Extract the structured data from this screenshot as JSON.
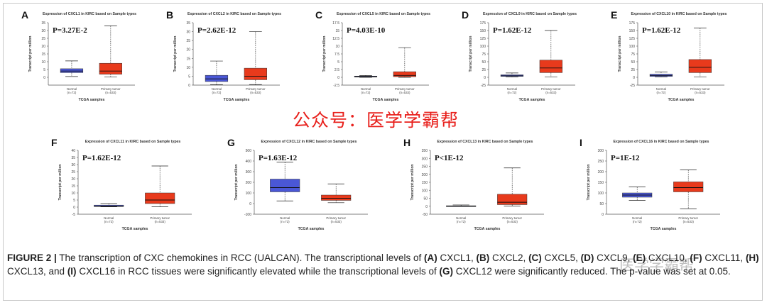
{
  "chart_data": [
    {
      "type": "box",
      "panel": "A",
      "title": "Expression of CXCL1 in KIRC based on Sample types",
      "pvalue": "P=3.27E-2",
      "ylabel": "Transcript per million",
      "xlabel": "TCGA samples",
      "ylim": [
        -5,
        35
      ],
      "yticks": [
        0,
        5,
        10,
        15,
        20,
        25,
        30,
        35
      ],
      "categories": [
        "Normal\n(n=72)",
        "Primary tumor\n(n=533)"
      ],
      "boxes": [
        {
          "min": 0.5,
          "q1": 3,
          "median": 4,
          "q3": 5.5,
          "max": 10.5,
          "color": "#4a57d6"
        },
        {
          "min": 0.2,
          "q1": 2,
          "median": 4,
          "q3": 9,
          "max": 33,
          "color": "#e83a1c"
        }
      ]
    },
    {
      "type": "box",
      "panel": "B",
      "title": "Expression of CXCL2 in KIRC based on Sample types",
      "pvalue": "P=2.62E-12",
      "ylabel": "Transcript per million",
      "xlabel": "TCGA samples",
      "ylim": [
        0,
        35
      ],
      "yticks": [
        0,
        5,
        10,
        15,
        20,
        25,
        30,
        35
      ],
      "categories": [
        "Normal\n(n=72)",
        "Primary tumor\n(n=533)"
      ],
      "boxes": [
        {
          "min": 0.3,
          "q1": 2,
          "median": 3.5,
          "q3": 5.5,
          "max": 13.5,
          "color": "#4a57d6"
        },
        {
          "min": 0.3,
          "q1": 3,
          "median": 5,
          "q3": 9.5,
          "max": 30,
          "color": "#e83a1c"
        }
      ]
    },
    {
      "type": "box",
      "panel": "C",
      "title": "Expression of CXCL5 in KIRC based on Sample types",
      "pvalue": "P=4.03E-10",
      "ylabel": "Transcript per million",
      "xlabel": "TCGA samples",
      "ylim": [
        -2.5,
        17.5
      ],
      "yticks": [
        -2.5,
        0,
        2.5,
        5,
        7.5,
        10,
        12.5,
        15,
        17.5
      ],
      "categories": [
        "Normal\n(n=72)",
        "Primary tumor\n(n=533)"
      ],
      "boxes": [
        {
          "min": 0,
          "q1": 0.1,
          "median": 0.2,
          "q3": 0.4,
          "max": 0.6,
          "color": "#4a57d6"
        },
        {
          "min": 0,
          "q1": 0.2,
          "median": 0.6,
          "q3": 1.8,
          "max": 9.5,
          "color": "#e83a1c"
        }
      ]
    },
    {
      "type": "box",
      "panel": "D",
      "title": "Expression of CXCL9 in KIRC based on Sample types",
      "pvalue": "P=1.62E-12",
      "ylabel": "Transcript per million",
      "xlabel": "TCGA samples",
      "ylim": [
        -25,
        175
      ],
      "yticks": [
        -25,
        0,
        25,
        50,
        75,
        100,
        125,
        150,
        175
      ],
      "categories": [
        "Normal\n(n=72)",
        "Primary tumor\n(n=533)"
      ],
      "boxes": [
        {
          "min": 1,
          "q1": 3,
          "median": 5,
          "q3": 8,
          "max": 14,
          "color": "#4a57d6"
        },
        {
          "min": 1,
          "q1": 15,
          "median": 30,
          "q3": 55,
          "max": 150,
          "color": "#e83a1c"
        }
      ]
    },
    {
      "type": "box",
      "panel": "E",
      "title": "Expression of CXCL10 in KIRC based on Sample types",
      "pvalue": "P=1.62E-12",
      "ylabel": "Transcript per million",
      "xlabel": "TCGA samples",
      "ylim": [
        -25,
        175
      ],
      "yticks": [
        -25,
        0,
        25,
        50,
        75,
        100,
        125,
        150,
        175
      ],
      "categories": [
        "Normal\n(n=72)",
        "Primary tumor\n(n=533)"
      ],
      "boxes": [
        {
          "min": 1,
          "q1": 3,
          "median": 6,
          "q3": 10,
          "max": 17,
          "color": "#4a57d6"
        },
        {
          "min": 1,
          "q1": 15,
          "median": 32,
          "q3": 57,
          "max": 158,
          "color": "#e83a1c"
        }
      ]
    },
    {
      "type": "box",
      "panel": "F",
      "title": "Expression of CXCL11 in KIRC based on Sample types",
      "pvalue": "P=1.62E-12",
      "ylabel": "Transcript per million",
      "xlabel": "TCGA samples",
      "ylim": [
        -5,
        40
      ],
      "yticks": [
        -5,
        0,
        5,
        10,
        15,
        20,
        25,
        30,
        35,
        40
      ],
      "categories": [
        "Normal\n(n=72)",
        "Primary tumor\n(n=533)"
      ],
      "boxes": [
        {
          "min": 0.2,
          "q1": 0.4,
          "median": 0.8,
          "q3": 1.4,
          "max": 2.5,
          "color": "#4a57d6"
        },
        {
          "min": 0.3,
          "q1": 2.5,
          "median": 5,
          "q3": 10,
          "max": 29,
          "color": "#e83a1c"
        }
      ]
    },
    {
      "type": "box",
      "panel": "G",
      "title": "Expression of CXCL12 in KIRC based on Sample types",
      "pvalue": "P=1.63E-12",
      "ylabel": "Transcript per million",
      "xlabel": "TCGA samples",
      "ylim": [
        -100,
        500
      ],
      "yticks": [
        -100,
        0,
        100,
        200,
        300,
        400,
        500
      ],
      "categories": [
        "Normal\n(n=72)",
        "Primary tumor\n(n=533)"
      ],
      "boxes": [
        {
          "min": 25,
          "q1": 110,
          "median": 150,
          "q3": 230,
          "max": 390,
          "color": "#4a57d6"
        },
        {
          "min": 8,
          "q1": 30,
          "median": 50,
          "q3": 80,
          "max": 185,
          "color": "#e83a1c"
        }
      ]
    },
    {
      "type": "box",
      "panel": "H",
      "title": "Expression of CXCL13 in KIRC based on Sample types",
      "pvalue": "P<1E-12",
      "ylabel": "Transcript per million",
      "xlabel": "TCGA samples",
      "ylim": [
        -50,
        350
      ],
      "yticks": [
        -50,
        0,
        50,
        100,
        150,
        200,
        250,
        300,
        350
      ],
      "categories": [
        "Normal\n(n=72)",
        "Primary tumor\n(n=533)"
      ],
      "boxes": [
        {
          "min": 0,
          "q1": 0.5,
          "median": 1,
          "q3": 3,
          "max": 8,
          "color": "#4a57d6"
        },
        {
          "min": 1,
          "q1": 10,
          "median": 25,
          "q3": 75,
          "max": 240,
          "color": "#e83a1c"
        }
      ]
    },
    {
      "type": "box",
      "panel": "I",
      "title": "Expression of CXCL16 in KIRC based on Sample types",
      "pvalue": "P=1E-12",
      "ylabel": "Transcript per million",
      "xlabel": "TCGA samples",
      "ylim": [
        0,
        300
      ],
      "yticks": [
        0,
        50,
        100,
        150,
        200,
        250,
        300
      ],
      "categories": [
        "Normal\n(n=72)",
        "Primary tumor\n(n=533)"
      ],
      "boxes": [
        {
          "min": 65,
          "q1": 80,
          "median": 90,
          "q3": 100,
          "max": 128,
          "color": "#4a57d6"
        },
        {
          "min": 25,
          "q1": 105,
          "median": 125,
          "q3": 152,
          "max": 208,
          "color": "#e83a1c"
        }
      ]
    }
  ],
  "watermark": "公众号：医学学霸帮",
  "watermark2": "医学学霸帮",
  "caption": {
    "label": "FIGURE 2 |",
    "t0": " The transcription of CXC chemokines in RCC (UALCAN). The transcriptional levels of ",
    "a": "(A)",
    "t1": " CXCL1, ",
    "b": "(B)",
    "t2": " CXCL2, ",
    "c": "(C)",
    "t3": " CXCL5, ",
    "d": "(D)",
    "t4": " CXCL9, ",
    "e": "(E)",
    "t5": " CXCL10, ",
    "f": "(F)",
    "t6": " CXCL11, ",
    "h": "(H)",
    "t7": " CXCL13, and ",
    "i": "(I)",
    "t8": " CXCL16 in RCC tissues were significantly elevated while the transcriptional levels of ",
    "g": "(G)",
    "t9": " CXCL12 were significantly reduced. The p-value was set at 0.05."
  }
}
